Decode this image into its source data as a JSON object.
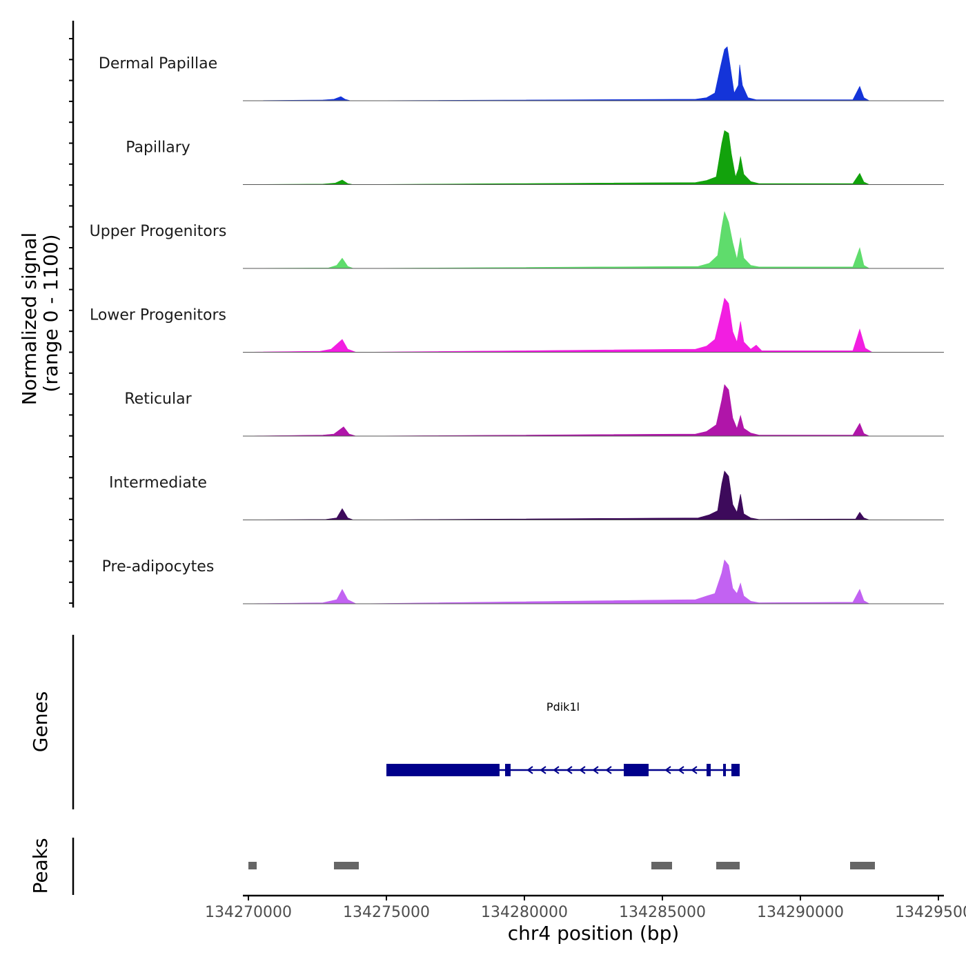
{
  "chart_data": {
    "type": "area",
    "title": "",
    "xlabel": "chr4 position (bp)",
    "coverage_ylabel_line1": "Normalized signal",
    "coverage_ylabel_line2": "(range 0 - 1100)",
    "ylim": [
      0,
      1100
    ],
    "xlim": [
      134269800,
      134295200
    ],
    "x_ticks": [
      134270000,
      134275000,
      134280000,
      134285000,
      134290000,
      134295000
    ],
    "x_tick_labels": [
      "134270000",
      "134275000",
      "134280000",
      "134285000",
      "134290000",
      "134295000"
    ],
    "series": [
      {
        "name": "Dermal Papillae",
        "color": "#1434d9",
        "points": [
          [
            134269800,
            0
          ],
          [
            134272700,
            15
          ],
          [
            134273100,
            30
          ],
          [
            134273350,
            80
          ],
          [
            134273500,
            30
          ],
          [
            134273700,
            0
          ],
          [
            134286200,
            30
          ],
          [
            134286600,
            60
          ],
          [
            134286900,
            150
          ],
          [
            134287100,
            650
          ],
          [
            134287250,
            1000
          ],
          [
            134287350,
            1050
          ],
          [
            134287450,
            700
          ],
          [
            134287600,
            150
          ],
          [
            134287750,
            300
          ],
          [
            134287800,
            700
          ],
          [
            134287900,
            300
          ],
          [
            134288100,
            60
          ],
          [
            134288400,
            20
          ],
          [
            134291900,
            20
          ],
          [
            134292150,
            280
          ],
          [
            134292300,
            60
          ],
          [
            134292500,
            0
          ],
          [
            134295200,
            0
          ]
        ]
      },
      {
        "name": "Papillary",
        "color": "#12a20c",
        "points": [
          [
            134269800,
            0
          ],
          [
            134272700,
            10
          ],
          [
            134273150,
            30
          ],
          [
            134273400,
            90
          ],
          [
            134273600,
            20
          ],
          [
            134273800,
            0
          ],
          [
            134286200,
            40
          ],
          [
            134286600,
            80
          ],
          [
            134286950,
            150
          ],
          [
            134287150,
            800
          ],
          [
            134287250,
            1050
          ],
          [
            134287400,
            1000
          ],
          [
            134287500,
            600
          ],
          [
            134287650,
            150
          ],
          [
            134287750,
            300
          ],
          [
            134287830,
            550
          ],
          [
            134287950,
            200
          ],
          [
            134288200,
            60
          ],
          [
            134288500,
            20
          ],
          [
            134291900,
            20
          ],
          [
            134292150,
            220
          ],
          [
            134292300,
            50
          ],
          [
            134292500,
            0
          ],
          [
            134295200,
            0
          ]
        ]
      },
      {
        "name": "Upper Progenitors",
        "color": "#5fdc6c",
        "points": [
          [
            134269800,
            0
          ],
          [
            134272900,
            10
          ],
          [
            134273200,
            60
          ],
          [
            134273400,
            200
          ],
          [
            134273600,
            40
          ],
          [
            134273800,
            0
          ],
          [
            134286300,
            40
          ],
          [
            134286700,
            100
          ],
          [
            134287000,
            250
          ],
          [
            134287150,
            800
          ],
          [
            134287250,
            1100
          ],
          [
            134287400,
            900
          ],
          [
            134287550,
            500
          ],
          [
            134287700,
            180
          ],
          [
            134287830,
            600
          ],
          [
            134287950,
            200
          ],
          [
            134288200,
            60
          ],
          [
            134288500,
            30
          ],
          [
            134291900,
            30
          ],
          [
            134292150,
            400
          ],
          [
            134292300,
            60
          ],
          [
            134292500,
            0
          ],
          [
            134295200,
            0
          ]
        ]
      },
      {
        "name": "Lower Progenitors",
        "color": "#f21ee1",
        "points": [
          [
            134269800,
            0
          ],
          [
            134272600,
            20
          ],
          [
            134273000,
            60
          ],
          [
            134273400,
            250
          ],
          [
            134273600,
            60
          ],
          [
            134273900,
            0
          ],
          [
            134286200,
            60
          ],
          [
            134286600,
            120
          ],
          [
            134286900,
            250
          ],
          [
            134287150,
            800
          ],
          [
            134287250,
            1050
          ],
          [
            134287400,
            950
          ],
          [
            134287550,
            400
          ],
          [
            134287700,
            200
          ],
          [
            134287830,
            600
          ],
          [
            134287950,
            200
          ],
          [
            134288200,
            60
          ],
          [
            134288400,
            140
          ],
          [
            134288600,
            30
          ],
          [
            134291900,
            30
          ],
          [
            134292150,
            450
          ],
          [
            134292350,
            80
          ],
          [
            134292600,
            0
          ],
          [
            134295200,
            0
          ]
        ]
      },
      {
        "name": "Reticular",
        "color": "#b015a9",
        "points": [
          [
            134269800,
            0
          ],
          [
            134272700,
            20
          ],
          [
            134273100,
            40
          ],
          [
            134273450,
            180
          ],
          [
            134273650,
            40
          ],
          [
            134273900,
            0
          ],
          [
            134286200,
            40
          ],
          [
            134286600,
            90
          ],
          [
            134286950,
            220
          ],
          [
            134287150,
            700
          ],
          [
            134287250,
            1000
          ],
          [
            134287400,
            900
          ],
          [
            134287550,
            350
          ],
          [
            134287700,
            150
          ],
          [
            134287830,
            400
          ],
          [
            134287950,
            150
          ],
          [
            134288200,
            60
          ],
          [
            134288500,
            20
          ],
          [
            134291900,
            20
          ],
          [
            134292150,
            250
          ],
          [
            134292300,
            50
          ],
          [
            134292500,
            0
          ],
          [
            134295200,
            0
          ]
        ]
      },
      {
        "name": "Intermediate",
        "color": "#3d0a5b",
        "points": [
          [
            134269800,
            0
          ],
          [
            134272800,
            10
          ],
          [
            134273200,
            40
          ],
          [
            134273400,
            220
          ],
          [
            134273600,
            40
          ],
          [
            134273800,
            0
          ],
          [
            134286300,
            40
          ],
          [
            134286700,
            100
          ],
          [
            134287000,
            180
          ],
          [
            134287150,
            700
          ],
          [
            134287250,
            950
          ],
          [
            134287400,
            850
          ],
          [
            134287550,
            300
          ],
          [
            134287700,
            150
          ],
          [
            134287830,
            500
          ],
          [
            134287950,
            120
          ],
          [
            134288200,
            40
          ],
          [
            134288500,
            10
          ],
          [
            134292000,
            20
          ],
          [
            134292150,
            150
          ],
          [
            134292300,
            40
          ],
          [
            134292500,
            0
          ],
          [
            134295200,
            0
          ]
        ]
      },
      {
        "name": "Pre-adipocytes",
        "color": "#c262f2",
        "points": [
          [
            134269800,
            0
          ],
          [
            134272700,
            20
          ],
          [
            134273200,
            80
          ],
          [
            134273400,
            280
          ],
          [
            134273600,
            80
          ],
          [
            134273900,
            0
          ],
          [
            134286200,
            80
          ],
          [
            134286600,
            150
          ],
          [
            134286900,
            200
          ],
          [
            134287150,
            600
          ],
          [
            134287250,
            850
          ],
          [
            134287400,
            750
          ],
          [
            134287550,
            300
          ],
          [
            134287700,
            200
          ],
          [
            134287830,
            400
          ],
          [
            134287950,
            150
          ],
          [
            134288200,
            50
          ],
          [
            134288500,
            20
          ],
          [
            134291900,
            30
          ],
          [
            134292150,
            280
          ],
          [
            134292300,
            60
          ],
          [
            134292500,
            0
          ],
          [
            134295200,
            0
          ]
        ]
      }
    ],
    "genes_track": {
      "label": "Genes",
      "color": "#00008b",
      "genes": [
        {
          "name": "Pdik1l",
          "strand": "-",
          "start": 134275000,
          "end": 134287800,
          "exons": [
            [
              134275000,
              134279100
            ],
            [
              134279300,
              134279500
            ],
            [
              134283600,
              134284500
            ],
            [
              134286600,
              134286750
            ],
            [
              134287200,
              134287300
            ],
            [
              134287500,
              134287800
            ]
          ]
        }
      ]
    },
    "peaks_track": {
      "label": "Peaks",
      "color": "#666666",
      "peaks": [
        [
          134270000,
          134270300
        ],
        [
          134273100,
          134274000
        ],
        [
          134284600,
          134285350
        ],
        [
          134286950,
          134287800
        ],
        [
          134291800,
          134292700
        ]
      ]
    }
  }
}
